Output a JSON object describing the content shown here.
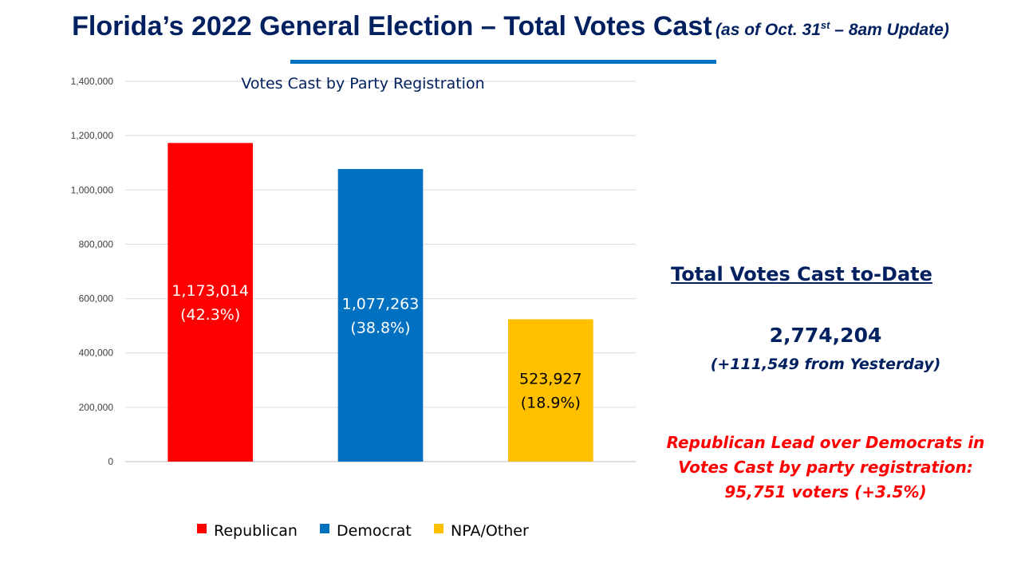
{
  "header": {
    "title": "Florida’s 2022 General Election – Total Votes Cast",
    "subtitle_pre": "(as of Oct. 31",
    "subtitle_sup": "st",
    "subtitle_post": " – 8am Update)"
  },
  "chart_data": {
    "type": "bar",
    "title": "Votes Cast by Party Registration",
    "categories": [
      "Republican",
      "Democrat",
      "NPA/Other"
    ],
    "values": [
      1173014,
      1077263,
      523927
    ],
    "value_labels": [
      "1,173,014",
      "1,077,263",
      "523,927"
    ],
    "percent_labels": [
      "(42.3%)",
      "(38.8%)",
      "(18.9%)"
    ],
    "colors": [
      "#ff0000",
      "#0070c0",
      "#ffc000"
    ],
    "label_colors": [
      "#ffffff",
      "#ffffff",
      "#000000"
    ],
    "ylim": [
      0,
      1400000
    ],
    "yticks": [
      0,
      200000,
      400000,
      600000,
      800000,
      1000000,
      1200000,
      1400000
    ],
    "ytick_labels": [
      "0",
      "200,000",
      "400,000",
      "600,000",
      "800,000",
      "1,000,000",
      "1,200,000",
      "1,400,000"
    ],
    "grid": true,
    "legend_position": "bottom",
    "xlabel": "",
    "ylabel": ""
  },
  "summary": {
    "heading": "Total Votes Cast to-Date",
    "total": "2,774,204",
    "change": "(+111,549 from Yesterday)",
    "lead_line1": "Republican Lead over Democrats in",
    "lead_line2": "Votes Cast by party registration:",
    "lead_line3": "95,751 voters (+3.5%)"
  }
}
